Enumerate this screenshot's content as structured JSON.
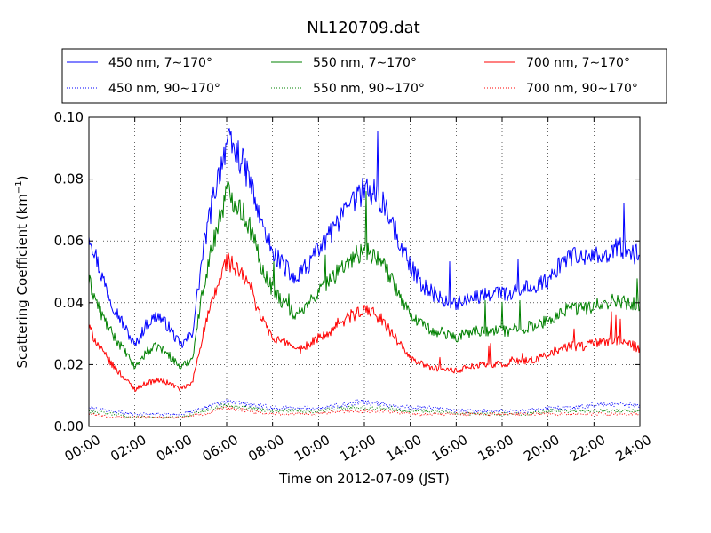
{
  "chart_data": {
    "type": "line",
    "title": "NL120709.dat",
    "xlabel": "Time on 2012-07-09 (JST)",
    "ylabel_main": "Scattering Coefficient (km",
    "ylabel_sup": "−1",
    "ylabel_end": ")",
    "xlim": [
      0,
      24
    ],
    "ylim": [
      0,
      0.1
    ],
    "x_ticks": [
      0,
      2,
      4,
      6,
      8,
      10,
      12,
      14,
      16,
      18,
      20,
      22,
      24
    ],
    "x_tick_labels": [
      "00:00",
      "02:00",
      "04:00",
      "06:00",
      "08:00",
      "10:00",
      "12:00",
      "14:00",
      "16:00",
      "18:00",
      "20:00",
      "22:00",
      "24:00"
    ],
    "y_ticks": [
      0,
      0.02,
      0.04,
      0.06,
      0.08,
      0.1
    ],
    "y_tick_labels": [
      "0.00",
      "0.02",
      "0.04",
      "0.06",
      "0.08",
      "0.10"
    ],
    "grid": true,
    "legend_position": "top",
    "series": [
      {
        "name": "450 nm, 7∼170°",
        "color": "#0000ff",
        "style": "solid",
        "x": [
          0,
          0.5,
          1,
          1.5,
          2,
          2.5,
          3,
          3.5,
          4,
          4.5,
          5,
          5.5,
          6,
          6.5,
          7,
          7.5,
          8,
          8.5,
          9,
          9.5,
          10,
          10.5,
          11,
          11.5,
          12,
          12.5,
          13,
          13.5,
          14,
          14.5,
          15,
          15.5,
          16,
          16.5,
          17,
          17.5,
          18,
          18.5,
          19,
          19.5,
          20,
          20.5,
          21,
          21.5,
          22,
          22.5,
          23,
          23.5,
          24
        ],
        "y": [
          0.063,
          0.05,
          0.04,
          0.033,
          0.026,
          0.033,
          0.036,
          0.032,
          0.026,
          0.03,
          0.058,
          0.077,
          0.092,
          0.088,
          0.08,
          0.065,
          0.057,
          0.052,
          0.047,
          0.052,
          0.057,
          0.062,
          0.067,
          0.072,
          0.077,
          0.075,
          0.07,
          0.06,
          0.052,
          0.046,
          0.043,
          0.041,
          0.04,
          0.041,
          0.042,
          0.043,
          0.043,
          0.043,
          0.045,
          0.046,
          0.047,
          0.052,
          0.055,
          0.054,
          0.055,
          0.056,
          0.058,
          0.057,
          0.055
        ]
      },
      {
        "name": "550 nm, 7∼170°",
        "color": "#008000",
        "style": "solid",
        "x": [
          0,
          0.5,
          1,
          1.5,
          2,
          2.5,
          3,
          3.5,
          4,
          4.5,
          5,
          5.5,
          6,
          6.5,
          7,
          7.5,
          8,
          8.5,
          9,
          9.5,
          10,
          10.5,
          11,
          11.5,
          12,
          12.5,
          13,
          13.5,
          14,
          14.5,
          15,
          15.5,
          16,
          16.5,
          17,
          17.5,
          18,
          18.5,
          19,
          19.5,
          20,
          20.5,
          21,
          21.5,
          22,
          22.5,
          23,
          23.5,
          24
        ],
        "y": [
          0.047,
          0.037,
          0.03,
          0.025,
          0.019,
          0.024,
          0.026,
          0.023,
          0.019,
          0.022,
          0.046,
          0.062,
          0.076,
          0.072,
          0.065,
          0.052,
          0.044,
          0.04,
          0.036,
          0.039,
          0.043,
          0.047,
          0.051,
          0.055,
          0.057,
          0.055,
          0.05,
          0.043,
          0.037,
          0.033,
          0.031,
          0.03,
          0.029,
          0.03,
          0.031,
          0.031,
          0.031,
          0.031,
          0.032,
          0.033,
          0.034,
          0.037,
          0.038,
          0.038,
          0.039,
          0.04,
          0.041,
          0.04,
          0.039
        ]
      },
      {
        "name": "700 nm, 7∼170°",
        "color": "#ff0000",
        "style": "solid",
        "x": [
          0,
          0.5,
          1,
          1.5,
          2,
          2.5,
          3,
          3.5,
          4,
          4.5,
          5,
          5.5,
          6,
          6.5,
          7,
          7.5,
          8,
          8.5,
          9,
          9.5,
          10,
          10.5,
          11,
          11.5,
          12,
          12.5,
          13,
          13.5,
          14,
          14.5,
          15,
          15.5,
          16,
          16.5,
          17,
          17.5,
          18,
          18.5,
          19,
          19.5,
          20,
          20.5,
          21,
          21.5,
          22,
          22.5,
          23,
          23.5,
          24
        ],
        "y": [
          0.032,
          0.025,
          0.02,
          0.016,
          0.012,
          0.014,
          0.015,
          0.014,
          0.012,
          0.014,
          0.031,
          0.043,
          0.054,
          0.05,
          0.046,
          0.035,
          0.029,
          0.027,
          0.024,
          0.026,
          0.029,
          0.031,
          0.034,
          0.036,
          0.038,
          0.036,
          0.032,
          0.027,
          0.022,
          0.02,
          0.019,
          0.018,
          0.018,
          0.019,
          0.02,
          0.02,
          0.02,
          0.021,
          0.021,
          0.022,
          0.023,
          0.025,
          0.026,
          0.026,
          0.027,
          0.027,
          0.028,
          0.027,
          0.025
        ]
      },
      {
        "name": "450 nm, 90∼170°",
        "color": "#0000ff",
        "style": "dotted",
        "x": [
          0,
          1,
          2,
          3,
          4,
          5,
          6,
          7,
          8,
          9,
          10,
          11,
          12,
          13,
          14,
          15,
          16,
          17,
          18,
          19,
          20,
          21,
          22,
          23,
          24
        ],
        "y": [
          0.006,
          0.005,
          0.004,
          0.004,
          0.004,
          0.006,
          0.008,
          0.007,
          0.006,
          0.006,
          0.006,
          0.007,
          0.008,
          0.007,
          0.006,
          0.006,
          0.005,
          0.005,
          0.005,
          0.005,
          0.006,
          0.006,
          0.007,
          0.007,
          0.007
        ]
      },
      {
        "name": "550 nm, 90∼170°",
        "color": "#008000",
        "style": "dotted",
        "x": [
          0,
          1,
          2,
          3,
          4,
          5,
          6,
          7,
          8,
          9,
          10,
          11,
          12,
          13,
          14,
          15,
          16,
          17,
          18,
          19,
          20,
          21,
          22,
          23,
          24
        ],
        "y": [
          0.005,
          0.004,
          0.003,
          0.003,
          0.003,
          0.005,
          0.007,
          0.006,
          0.005,
          0.005,
          0.005,
          0.006,
          0.006,
          0.006,
          0.005,
          0.005,
          0.004,
          0.004,
          0.004,
          0.004,
          0.005,
          0.005,
          0.005,
          0.005,
          0.005
        ]
      },
      {
        "name": "700 nm, 90∼170°",
        "color": "#ff0000",
        "style": "dotted",
        "x": [
          0,
          1,
          2,
          3,
          4,
          5,
          6,
          7,
          8,
          9,
          10,
          11,
          12,
          13,
          14,
          15,
          16,
          17,
          18,
          19,
          20,
          21,
          22,
          23,
          24
        ],
        "y": [
          0.004,
          0.003,
          0.003,
          0.003,
          0.003,
          0.004,
          0.006,
          0.005,
          0.004,
          0.004,
          0.004,
          0.005,
          0.005,
          0.005,
          0.004,
          0.004,
          0.004,
          0.004,
          0.004,
          0.004,
          0.004,
          0.004,
          0.004,
          0.004,
          0.004
        ]
      }
    ]
  }
}
